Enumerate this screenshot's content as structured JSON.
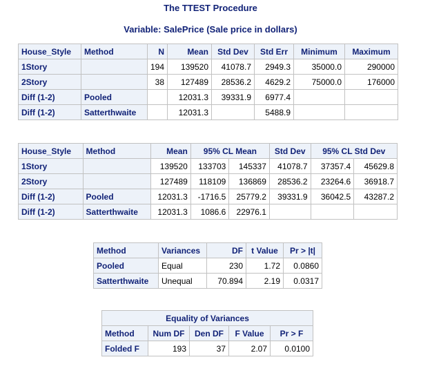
{
  "header": {
    "proc_title": "The TTEST Procedure",
    "variable_title": "Variable: SalePrice (Sale price in dollars)"
  },
  "table1": {
    "columns": [
      "House_Style",
      "Method",
      "N",
      "Mean",
      "Std Dev",
      "Std Err",
      "Minimum",
      "Maximum"
    ],
    "rows": [
      [
        "1Story",
        "",
        "194",
        "139520",
        "41078.7",
        "2949.3",
        "35000.0",
        "290000"
      ],
      [
        "2Story",
        "",
        "38",
        "127489",
        "28536.2",
        "4629.2",
        "75000.0",
        "176000"
      ],
      [
        "Diff (1-2)",
        "Pooled",
        "",
        "12031.3",
        "39331.9",
        "6977.4",
        "",
        ""
      ],
      [
        "Diff (1-2)",
        "Satterthwaite",
        "",
        "12031.3",
        "",
        "5488.9",
        "",
        ""
      ]
    ]
  },
  "table2": {
    "columns": [
      "House_Style",
      "Method",
      "Mean",
      "95% CL Mean",
      "Std Dev",
      "95% CL Std Dev"
    ],
    "rows": [
      [
        "1Story",
        "",
        "139520",
        "133703",
        "145337",
        "41078.7",
        "37357.4",
        "45629.8"
      ],
      [
        "2Story",
        "",
        "127489",
        "118109",
        "136869",
        "28536.2",
        "23264.6",
        "36918.7"
      ],
      [
        "Diff (1-2)",
        "Pooled",
        "12031.3",
        "-1716.5",
        "25779.2",
        "39331.9",
        "36042.5",
        "43287.2"
      ],
      [
        "Diff (1-2)",
        "Satterthwaite",
        "12031.3",
        "1086.6",
        "22976.1",
        "",
        "",
        ""
      ]
    ]
  },
  "table3": {
    "columns": [
      "Method",
      "Variances",
      "DF",
      "t Value",
      "Pr > |t|"
    ],
    "rows": [
      [
        "Pooled",
        "Equal",
        "230",
        "1.72",
        "0.0860"
      ],
      [
        "Satterthwaite",
        "Unequal",
        "70.894",
        "2.19",
        "0.0317"
      ]
    ]
  },
  "table4": {
    "title": "Equality of Variances",
    "columns": [
      "Method",
      "Num DF",
      "Den DF",
      "F Value",
      "Pr > F"
    ],
    "rows": [
      [
        "Folded F",
        "193",
        "37",
        "2.07",
        "0.0100"
      ]
    ]
  }
}
